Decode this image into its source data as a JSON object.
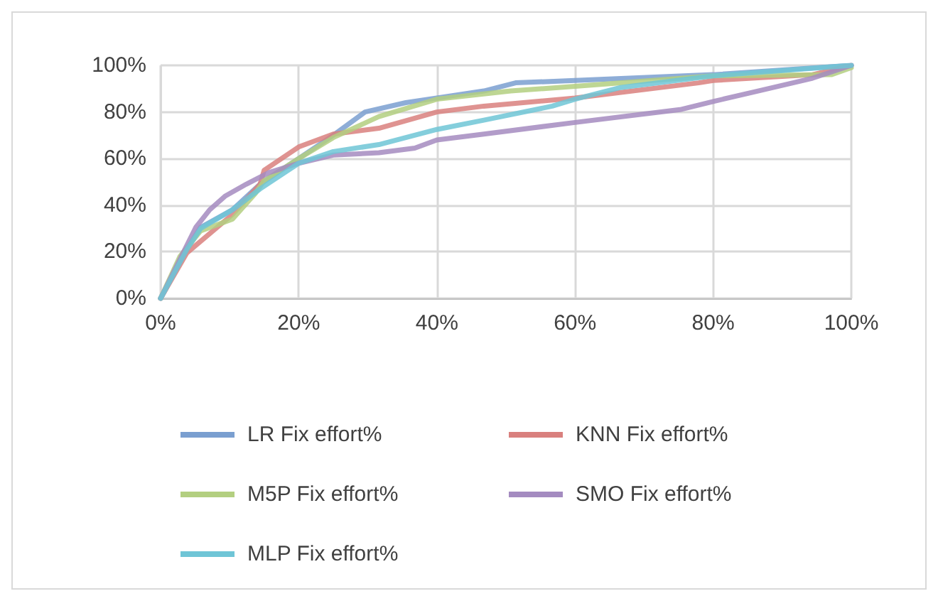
{
  "chart_data": {
    "type": "line",
    "xlim": [
      0,
      100
    ],
    "ylim": [
      0,
      100
    ],
    "xticks": [
      {
        "value": 0,
        "label": "0%"
      },
      {
        "value": 20,
        "label": "20%"
      },
      {
        "value": 40,
        "label": "40%"
      },
      {
        "value": 60,
        "label": "60%"
      },
      {
        "value": 80,
        "label": "80%"
      },
      {
        "value": 100,
        "label": "100%"
      }
    ],
    "yticks": [
      {
        "value": 0,
        "label": "0%"
      },
      {
        "value": 20,
        "label": "20%"
      },
      {
        "value": 40,
        "label": "40%"
      },
      {
        "value": 60,
        "label": "60%"
      },
      {
        "value": 80,
        "label": "80%"
      },
      {
        "value": 100,
        "label": "100%"
      }
    ],
    "grid": true,
    "legend": "bottom",
    "marker": "none",
    "line_style": "solid",
    "series": [
      {
        "name": "LR Fix effort%",
        "color": "#7a9fd0",
        "x": [
          0,
          3.8,
          5.8,
          10.4,
          14.4,
          20,
          25,
          29.6,
          35.5,
          40,
          46.8,
          51.4,
          60,
          80,
          100
        ],
        "values": [
          0,
          21,
          30.5,
          38,
          49,
          60,
          70,
          80,
          84,
          86,
          89,
          92.5,
          93.5,
          96,
          100
        ]
      },
      {
        "name": "KNN Fix effort%",
        "color": "#d9807e",
        "x": [
          0,
          3.8,
          10.4,
          14.4,
          15,
          20,
          25,
          31.6,
          40,
          46.8,
          60,
          77.9,
          80,
          94.4,
          100
        ],
        "values": [
          0,
          19.5,
          36,
          49,
          55,
          65,
          70.5,
          73,
          80,
          82.5,
          86,
          92.5,
          93.5,
          96,
          100
        ]
      },
      {
        "name": "M5P Fix effort%",
        "color": "#b3cf80",
        "x": [
          0,
          2.8,
          5.8,
          10.4,
          13.7,
          15,
          20,
          25,
          31.6,
          40,
          50.7,
          60,
          80,
          97.1,
          100
        ],
        "values": [
          0,
          18,
          29,
          34,
          45,
          50.5,
          60,
          69,
          78,
          85.5,
          89,
          91,
          95.5,
          96,
          99
        ]
      },
      {
        "name": "SMO Fix effort%",
        "color": "#a48bc0",
        "x": [
          0,
          5.1,
          7.1,
          9.4,
          12.4,
          15.7,
          20,
          25,
          31.6,
          36.8,
          40,
          46.8,
          60,
          75.2,
          80,
          86.5,
          94.4,
          100
        ],
        "values": [
          0,
          30.5,
          38,
          44,
          49,
          54,
          58,
          61.5,
          62.5,
          64.5,
          68,
          70.5,
          75.5,
          81,
          84.5,
          89,
          94.5,
          100
        ]
      },
      {
        "name": "MLP Fix effort%",
        "color": "#6fc5d6",
        "x": [
          0,
          3.8,
          5.8,
          10.4,
          14.4,
          20,
          25,
          31.6,
          40,
          46.8,
          56.7,
          60,
          66.6,
          80,
          100
        ],
        "values": [
          0,
          21,
          30,
          38,
          47,
          58,
          63,
          66,
          72.5,
          76.5,
          82.5,
          85.5,
          90.5,
          95.5,
          100
        ]
      }
    ]
  }
}
